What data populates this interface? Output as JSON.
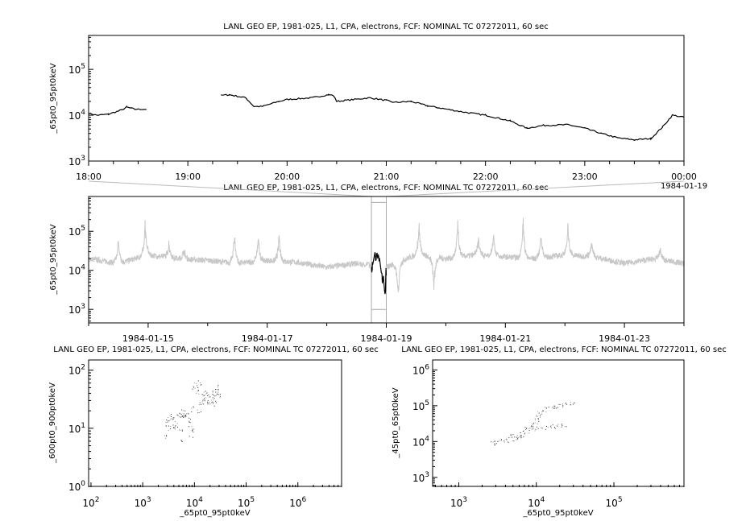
{
  "chart_data": [
    {
      "type": "line",
      "title": "LANL GEO EP, 1981-025, L1, CPA, electrons, FCF: NOMINAL TC 07272011, 60 sec",
      "ylabel": "_65pt0_95pt0keV",
      "yscale": "log",
      "ylim": [
        1000,
        550000
      ],
      "xlim": [
        "1984-01-18 18:00",
        "1984-01-19 00:00"
      ],
      "xticks": [
        "18:00",
        "19:00",
        "20:00",
        "21:00",
        "22:00",
        "23:00",
        "00:00"
      ],
      "xtick_extra": "1984-01-19",
      "yticks": [
        {
          "exp": "3"
        },
        {
          "exp": "4"
        },
        {
          "exp": "5"
        }
      ],
      "color": "#000000",
      "points": [
        [
          "18:00",
          11000
        ],
        [
          "18:05",
          10000
        ],
        [
          "18:12",
          10500
        ],
        [
          "18:20",
          13000
        ],
        [
          "18:23",
          15000
        ],
        [
          "18:28",
          13500
        ],
        [
          "18:35",
          13500
        ],
        null,
        [
          "19:20",
          27000
        ],
        [
          "19:25",
          28000
        ],
        [
          "19:35",
          24000
        ],
        [
          "19:40",
          15500
        ],
        [
          "19:45",
          15500
        ],
        [
          "19:55",
          20000
        ],
        [
          "20:00",
          22000
        ],
        [
          "20:15",
          24000
        ],
        [
          "20:25",
          28000
        ],
        [
          "20:28",
          27000
        ],
        [
          "20:30",
          20000
        ],
        [
          "20:35",
          21000
        ],
        [
          "20:50",
          24000
        ],
        [
          "21:00",
          21000
        ],
        [
          "21:05",
          19000
        ],
        [
          "21:15",
          20000
        ],
        [
          "21:25",
          16000
        ],
        [
          "21:45",
          12000
        ],
        [
          "22:00",
          10000
        ],
        [
          "22:15",
          7500
        ],
        [
          "22:25",
          5200
        ],
        [
          "22:35",
          6000
        ],
        [
          "22:50",
          6200
        ],
        [
          "23:00",
          5200
        ],
        [
          "23:10",
          4000
        ],
        [
          "23:20",
          3200
        ],
        [
          "23:30",
          2900
        ],
        [
          "23:40",
          3100
        ],
        [
          "23:47",
          5500
        ],
        [
          "23:53",
          10000
        ],
        [
          "24:00",
          9000
        ]
      ]
    },
    {
      "type": "line",
      "title": "LANL GEO EP, 1981-025, L1, CPA, electrons, FCF: NOMINAL TC 07272011, 60 sec",
      "ylabel": "_65pt0_95pt0keV",
      "yscale": "log",
      "ylim": [
        450,
        780000
      ],
      "xlim": [
        "1984-01-14",
        "1984-01-24"
      ],
      "xticks": [
        "1984-01-15",
        "1984-01-17",
        "1984-01-19",
        "1984-01-21",
        "1984-01-23"
      ],
      "yticks": [
        {
          "exp": "3"
        },
        {
          "exp": "4"
        },
        {
          "exp": "5"
        }
      ],
      "context_color": "#c8c8c8",
      "highlight_color": "#000000",
      "highlight_range": [
        "1984-01-18 18:00",
        "1984-01-19 00:00"
      ],
      "baseline_days": [
        [
          0,
          20000
        ],
        [
          0.5,
          15000
        ],
        [
          1,
          25000
        ],
        [
          1.5,
          20000
        ],
        [
          2,
          18000
        ],
        [
          2.5,
          15000
        ],
        [
          3,
          18000
        ],
        [
          3.5,
          16000
        ],
        [
          4,
          12000
        ],
        [
          4.5,
          15000
        ],
        [
          5,
          12000
        ],
        [
          5.5,
          25000
        ],
        [
          6,
          20000
        ],
        [
          6.5,
          25000
        ],
        [
          7,
          22000
        ],
        [
          7.5,
          20000
        ],
        [
          8,
          25000
        ],
        [
          8.5,
          22000
        ],
        [
          9,
          15000
        ],
        [
          9.5,
          20000
        ],
        [
          10,
          15000
        ]
      ],
      "spikes_days": [
        [
          0.5,
          80000
        ],
        [
          0.95,
          250000
        ],
        [
          1.35,
          60000
        ],
        [
          1.6,
          40000
        ],
        [
          2.45,
          130000
        ],
        [
          2.85,
          90000
        ],
        [
          3.2,
          100000
        ],
        [
          5.2,
          1500
        ],
        [
          5.55,
          180000
        ],
        [
          5.8,
          2500
        ],
        [
          6.2,
          200000
        ],
        [
          6.55,
          90000
        ],
        [
          6.8,
          120000
        ],
        [
          7.3,
          280000
        ],
        [
          7.6,
          120000
        ],
        [
          8.05,
          180000
        ],
        [
          8.45,
          60000
        ],
        [
          9.6,
          40000
        ]
      ]
    },
    {
      "type": "scatter",
      "title": "LANL GEO EP, 1981-025, L1, CPA, electrons, FCF: NOMINAL TC 07272011, 60 sec",
      "xlabel": "_65pt0_95pt0keV",
      "ylabel": "_600pt0_900pt0keV",
      "xscale": "log",
      "yscale": "log",
      "xlim": [
        90,
        7000000
      ],
      "ylim": [
        1,
        150
      ],
      "xticks": [
        {
          "exp": "2"
        },
        {
          "exp": "3"
        },
        {
          "exp": "4"
        },
        {
          "exp": "5"
        },
        {
          "exp": "6"
        }
      ],
      "yticks": [
        {
          "exp": "0"
        },
        {
          "exp": "1"
        },
        {
          "exp": "2"
        }
      ],
      "points": [
        [
          2800,
          7
        ],
        [
          3000,
          12
        ],
        [
          3100,
          14
        ],
        [
          3200,
          10
        ],
        [
          3300,
          16
        ],
        [
          3500,
          13
        ],
        [
          3800,
          11
        ],
        [
          4200,
          14
        ],
        [
          4500,
          12
        ],
        [
          5000,
          16
        ],
        [
          5300,
          18
        ],
        [
          5500,
          6
        ],
        [
          5600,
          10
        ],
        [
          5800,
          15
        ],
        [
          6000,
          17
        ],
        [
          6200,
          19
        ],
        [
          6500,
          16
        ],
        [
          7000,
          20
        ],
        [
          7500,
          14
        ],
        [
          8000,
          12
        ],
        [
          8500,
          8
        ],
        [
          9000,
          10
        ],
        [
          9500,
          22
        ],
        [
          10000,
          50
        ],
        [
          10500,
          55
        ],
        [
          11000,
          45
        ],
        [
          12000,
          20
        ],
        [
          12500,
          60
        ],
        [
          13000,
          25
        ],
        [
          14000,
          40
        ],
        [
          15000,
          30
        ],
        [
          16000,
          35
        ],
        [
          17000,
          42
        ],
        [
          18000,
          28
        ],
        [
          19000,
          38
        ],
        [
          20000,
          30
        ],
        [
          21000,
          32
        ],
        [
          22000,
          25
        ],
        [
          23000,
          40
        ],
        [
          24000,
          35
        ],
        [
          25000,
          30
        ],
        [
          26000,
          45
        ],
        [
          27000,
          38
        ],
        [
          28000,
          50
        ],
        [
          29000,
          35
        ]
      ]
    },
    {
      "type": "scatter",
      "title": "LANL GEO EP, 1981-025, L1, CPA, electrons, FCF: NOMINAL TC 07272011, 60 sec",
      "xlabel": "_65pt0_95pt0keV",
      "ylabel": "_45pt0_65pt0keV",
      "xscale": "log",
      "yscale": "log",
      "xlim": [
        460,
        800000
      ],
      "ylim": [
        560,
        1900000
      ],
      "xticks": [
        {
          "exp": "3"
        },
        {
          "exp": "4"
        },
        {
          "exp": "5"
        }
      ],
      "yticks": [
        {
          "exp": "3"
        },
        {
          "exp": "4"
        },
        {
          "exp": "5"
        },
        {
          "exp": "6"
        }
      ],
      "points": [
        [
          2700,
          9000
        ],
        [
          3000,
          9500
        ],
        [
          3300,
          10000
        ],
        [
          3700,
          10500
        ],
        [
          4200,
          11000
        ],
        [
          4800,
          12000
        ],
        [
          5300,
          13000
        ],
        [
          5800,
          14000
        ],
        [
          6300,
          15000
        ],
        [
          6800,
          17000
        ],
        [
          7300,
          20000
        ],
        [
          7800,
          23000
        ],
        [
          8300,
          26000
        ],
        [
          9000,
          30000
        ],
        [
          9800,
          36000
        ],
        [
          10500,
          45000
        ],
        [
          11000,
          55000
        ],
        [
          11500,
          65000
        ],
        [
          12500,
          75000
        ],
        [
          14000,
          85000
        ],
        [
          16000,
          90000
        ],
        [
          18000,
          95000
        ],
        [
          20000,
          100000
        ],
        [
          23000,
          105000
        ],
        [
          26000,
          110000
        ],
        [
          29000,
          115000
        ],
        [
          9000,
          22000
        ],
        [
          11000,
          24000
        ],
        [
          13000,
          25000
        ],
        [
          15000,
          27000
        ],
        [
          17000,
          26000
        ],
        [
          20000,
          28000
        ],
        [
          22000,
          30000
        ],
        [
          6000,
          13000
        ],
        [
          5000,
          14500
        ]
      ]
    }
  ]
}
